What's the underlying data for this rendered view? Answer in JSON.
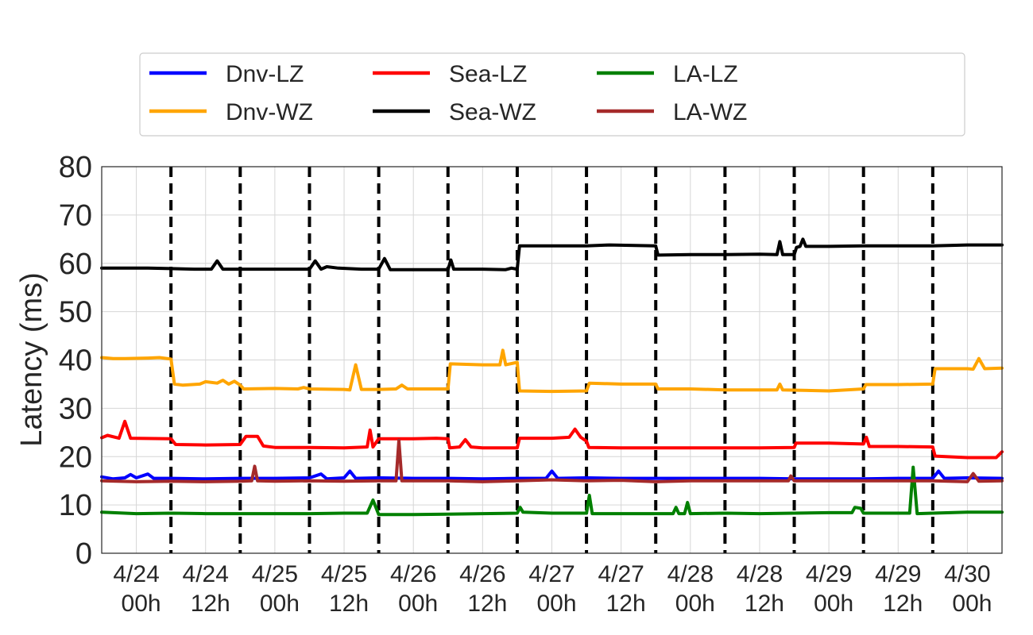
{
  "chart_data": {
    "type": "line",
    "title": "",
    "xlabel": "",
    "ylabel": "Latency (ms)",
    "ylim": [
      0,
      80
    ],
    "yticks": [
      0,
      10,
      20,
      30,
      40,
      50,
      60,
      70,
      80
    ],
    "x_unit": "hours since 4/23 18h",
    "xlim": [
      0,
      156
    ],
    "xticks": [
      {
        "x": 6,
        "line1": "4/24",
        "line2": "00h"
      },
      {
        "x": 18,
        "line1": "4/24",
        "line2": "12h"
      },
      {
        "x": 30,
        "line1": "4/25",
        "line2": "00h"
      },
      {
        "x": 42,
        "line1": "4/25",
        "line2": "12h"
      },
      {
        "x": 54,
        "line1": "4/26",
        "line2": "00h"
      },
      {
        "x": 66,
        "line1": "4/26",
        "line2": "12h"
      },
      {
        "x": 78,
        "line1": "4/27",
        "line2": "00h"
      },
      {
        "x": 90,
        "line1": "4/27",
        "line2": "12h"
      },
      {
        "x": 102,
        "line1": "4/28",
        "line2": "00h"
      },
      {
        "x": 114,
        "line1": "4/28",
        "line2": "12h"
      },
      {
        "x": 126,
        "line1": "4/29",
        "line2": "00h"
      },
      {
        "x": 138,
        "line1": "4/29",
        "line2": "12h"
      },
      {
        "x": 150,
        "line1": "4/30",
        "line2": "00h"
      }
    ],
    "vlines_dashed": [
      12,
      24,
      36,
      48,
      60,
      72,
      84,
      96,
      108,
      120,
      132,
      144
    ],
    "grid": true,
    "legend": {
      "placement": "top",
      "columns": 4
    },
    "series": [
      {
        "name": "Dnv-LZ",
        "color": "#0000ff",
        "points": [
          [
            0,
            15.8
          ],
          [
            2,
            15.4
          ],
          [
            4,
            15.6
          ],
          [
            5,
            16.3
          ],
          [
            6,
            15.6
          ],
          [
            8,
            16.4
          ],
          [
            9,
            15.5
          ],
          [
            12,
            15.5
          ],
          [
            18,
            15.4
          ],
          [
            24,
            15.5
          ],
          [
            30,
            15.5
          ],
          [
            36,
            15.6
          ],
          [
            38,
            16.4
          ],
          [
            39,
            15.4
          ],
          [
            42,
            15.6
          ],
          [
            43,
            17.0
          ],
          [
            44,
            15.5
          ],
          [
            48,
            15.6
          ],
          [
            54,
            15.5
          ],
          [
            60,
            15.5
          ],
          [
            66,
            15.4
          ],
          [
            72,
            15.5
          ],
          [
            77,
            15.5
          ],
          [
            78,
            17.0
          ],
          [
            79,
            15.5
          ],
          [
            84,
            15.6
          ],
          [
            90,
            15.5
          ],
          [
            96,
            15.5
          ],
          [
            102,
            15.5
          ],
          [
            108,
            15.5
          ],
          [
            114,
            15.5
          ],
          [
            120,
            15.4
          ],
          [
            126,
            15.4
          ],
          [
            132,
            15.4
          ],
          [
            138,
            15.5
          ],
          [
            144,
            15.5
          ],
          [
            145,
            17.0
          ],
          [
            146,
            15.5
          ],
          [
            150,
            15.6
          ],
          [
            156,
            15.5
          ]
        ]
      },
      {
        "name": "Dnv-WZ",
        "color": "#ffa500",
        "points": [
          [
            0,
            40.5
          ],
          [
            2,
            40.3
          ],
          [
            4,
            40.3
          ],
          [
            8,
            40.4
          ],
          [
            10,
            40.5
          ],
          [
            12,
            40.2
          ],
          [
            12.6,
            35.0
          ],
          [
            14,
            34.8
          ],
          [
            17,
            35.0
          ],
          [
            18,
            35.5
          ],
          [
            20,
            35.2
          ],
          [
            21,
            35.8
          ],
          [
            22,
            35.0
          ],
          [
            23,
            35.6
          ],
          [
            24,
            34.8
          ],
          [
            24.6,
            34.0
          ],
          [
            30,
            34.1
          ],
          [
            34,
            34.0
          ],
          [
            35,
            34.3
          ],
          [
            36,
            34.0
          ],
          [
            42,
            33.9
          ],
          [
            43,
            33.8
          ],
          [
            44,
            39.0
          ],
          [
            45,
            33.9
          ],
          [
            48,
            33.9
          ],
          [
            51,
            34.0
          ],
          [
            52,
            34.8
          ],
          [
            53,
            34.0
          ],
          [
            60,
            34.0
          ],
          [
            60.4,
            39.2
          ],
          [
            66,
            39.0
          ],
          [
            69,
            39.0
          ],
          [
            69.5,
            42.0
          ],
          [
            70,
            39.0
          ],
          [
            72,
            39.5
          ],
          [
            72.4,
            33.6
          ],
          [
            78,
            33.5
          ],
          [
            84,
            33.6
          ],
          [
            84.5,
            35.2
          ],
          [
            90,
            35.0
          ],
          [
            96,
            35.0
          ],
          [
            96.4,
            34.0
          ],
          [
            102,
            34.0
          ],
          [
            108,
            33.8
          ],
          [
            114,
            33.8
          ],
          [
            117,
            33.8
          ],
          [
            117.5,
            35.0
          ],
          [
            118,
            33.8
          ],
          [
            126,
            33.6
          ],
          [
            132,
            34.0
          ],
          [
            132.4,
            34.9
          ],
          [
            138,
            34.9
          ],
          [
            144,
            35.0
          ],
          [
            144.4,
            38.2
          ],
          [
            150,
            38.2
          ],
          [
            151,
            38.1
          ],
          [
            152,
            40.3
          ],
          [
            153,
            38.2
          ],
          [
            156,
            38.3
          ]
        ]
      },
      {
        "name": "Sea-LZ",
        "color": "#ff0000",
        "points": [
          [
            0,
            23.9
          ],
          [
            1,
            24.4
          ],
          [
            3,
            23.8
          ],
          [
            4,
            27.3
          ],
          [
            5,
            23.8
          ],
          [
            12,
            23.7
          ],
          [
            12.8,
            22.5
          ],
          [
            18,
            22.4
          ],
          [
            24,
            22.5
          ],
          [
            25,
            24.2
          ],
          [
            27,
            24.2
          ],
          [
            28,
            22.2
          ],
          [
            30,
            21.9
          ],
          [
            36,
            21.9
          ],
          [
            42,
            21.8
          ],
          [
            46,
            22.0
          ],
          [
            46.5,
            25.5
          ],
          [
            47,
            22.0
          ],
          [
            48,
            23.7
          ],
          [
            54,
            23.7
          ],
          [
            58,
            23.8
          ],
          [
            60,
            23.7
          ],
          [
            60.3,
            21.8
          ],
          [
            62,
            22.0
          ],
          [
            63,
            23.5
          ],
          [
            64,
            22.0
          ],
          [
            66,
            21.8
          ],
          [
            72,
            21.8
          ],
          [
            72.4,
            23.8
          ],
          [
            78,
            23.8
          ],
          [
            81,
            24.0
          ],
          [
            82,
            25.7
          ],
          [
            83,
            24.0
          ],
          [
            84,
            23.2
          ],
          [
            84.4,
            21.9
          ],
          [
            90,
            21.8
          ],
          [
            96,
            21.8
          ],
          [
            102,
            21.8
          ],
          [
            108,
            21.8
          ],
          [
            114,
            21.8
          ],
          [
            120,
            21.9
          ],
          [
            120.3,
            22.8
          ],
          [
            126,
            22.8
          ],
          [
            132,
            22.6
          ],
          [
            132.5,
            24.0
          ],
          [
            133,
            22.1
          ],
          [
            138,
            22.1
          ],
          [
            144,
            22.0
          ],
          [
            144.4,
            20.1
          ],
          [
            150,
            19.8
          ],
          [
            155,
            19.8
          ],
          [
            156,
            21.0
          ]
        ]
      },
      {
        "name": "Sea-WZ",
        "color": "#000000",
        "points": [
          [
            0,
            59.0
          ],
          [
            4,
            59.0
          ],
          [
            8,
            59.0
          ],
          [
            12,
            58.9
          ],
          [
            16,
            58.8
          ],
          [
            19,
            58.8
          ],
          [
            20,
            60.5
          ],
          [
            21,
            58.8
          ],
          [
            24,
            58.8
          ],
          [
            30,
            58.8
          ],
          [
            36,
            58.8
          ],
          [
            37,
            60.5
          ],
          [
            38,
            58.8
          ],
          [
            39,
            59.3
          ],
          [
            41,
            59.0
          ],
          [
            45,
            58.8
          ],
          [
            48,
            58.8
          ],
          [
            49,
            61.0
          ],
          [
            50,
            58.7
          ],
          [
            54,
            58.7
          ],
          [
            60,
            58.7
          ],
          [
            60.5,
            60.7
          ],
          [
            61,
            58.8
          ],
          [
            66,
            58.8
          ],
          [
            70,
            58.7
          ],
          [
            71,
            59.0
          ],
          [
            72,
            58.8
          ],
          [
            72.4,
            63.6
          ],
          [
            78,
            63.6
          ],
          [
            84,
            63.6
          ],
          [
            88,
            63.8
          ],
          [
            96,
            63.6
          ],
          [
            96.4,
            61.7
          ],
          [
            102,
            61.8
          ],
          [
            108,
            61.8
          ],
          [
            114,
            61.9
          ],
          [
            117,
            61.8
          ],
          [
            117.5,
            64.5
          ],
          [
            118,
            61.8
          ],
          [
            120,
            61.8
          ],
          [
            120.4,
            63.3
          ],
          [
            121,
            63.5
          ],
          [
            121.5,
            65.0
          ],
          [
            122,
            63.5
          ],
          [
            126,
            63.5
          ],
          [
            132,
            63.6
          ],
          [
            138,
            63.6
          ],
          [
            144,
            63.6
          ],
          [
            150,
            63.8
          ],
          [
            156,
            63.8
          ]
        ]
      },
      {
        "name": "LA-LZ",
        "color": "#008000",
        "points": [
          [
            0,
            8.5
          ],
          [
            6,
            8.2
          ],
          [
            12,
            8.3
          ],
          [
            18,
            8.2
          ],
          [
            24,
            8.2
          ],
          [
            30,
            8.2
          ],
          [
            36,
            8.2
          ],
          [
            42,
            8.3
          ],
          [
            46,
            8.3
          ],
          [
            47,
            11.0
          ],
          [
            48,
            8.0
          ],
          [
            54,
            8.0
          ],
          [
            60,
            8.1
          ],
          [
            66,
            8.2
          ],
          [
            72,
            8.3
          ],
          [
            72.5,
            9.5
          ],
          [
            73,
            8.5
          ],
          [
            78,
            8.3
          ],
          [
            84,
            8.3
          ],
          [
            84.5,
            12.0
          ],
          [
            85,
            8.2
          ],
          [
            90,
            8.2
          ],
          [
            96,
            8.2
          ],
          [
            99,
            8.2
          ],
          [
            99.5,
            9.5
          ],
          [
            100,
            8.2
          ],
          [
            101,
            8.2
          ],
          [
            101.5,
            10.5
          ],
          [
            102,
            8.2
          ],
          [
            108,
            8.3
          ],
          [
            114,
            8.2
          ],
          [
            120,
            8.3
          ],
          [
            126,
            8.4
          ],
          [
            130,
            8.4
          ],
          [
            130.5,
            9.5
          ],
          [
            131.5,
            9.3
          ],
          [
            132,
            8.3
          ],
          [
            138,
            8.3
          ],
          [
            140,
            8.3
          ],
          [
            140.6,
            17.8
          ],
          [
            141.3,
            8.2
          ],
          [
            144,
            8.3
          ],
          [
            150,
            8.5
          ],
          [
            156,
            8.5
          ]
        ]
      },
      {
        "name": "LA-WZ",
        "color": "#a52a2a",
        "points": [
          [
            0,
            15.0
          ],
          [
            6,
            14.8
          ],
          [
            12,
            14.9
          ],
          [
            18,
            14.8
          ],
          [
            24,
            14.9
          ],
          [
            26,
            15.0
          ],
          [
            26.5,
            18.0
          ],
          [
            27,
            15.0
          ],
          [
            30,
            14.9
          ],
          [
            36,
            15.0
          ],
          [
            42,
            14.9
          ],
          [
            48,
            15.0
          ],
          [
            51,
            15.0
          ],
          [
            51.5,
            23.4
          ],
          [
            52,
            15.0
          ],
          [
            54,
            15.0
          ],
          [
            60,
            15.0
          ],
          [
            66,
            14.8
          ],
          [
            72,
            15.0
          ],
          [
            78,
            15.2
          ],
          [
            84,
            15.0
          ],
          [
            90,
            15.1
          ],
          [
            96,
            14.8
          ],
          [
            102,
            15.0
          ],
          [
            108,
            15.0
          ],
          [
            114,
            15.0
          ],
          [
            119,
            15.0
          ],
          [
            119.4,
            16.0
          ],
          [
            120,
            15.0
          ],
          [
            126,
            15.0
          ],
          [
            132,
            15.0
          ],
          [
            138,
            15.0
          ],
          [
            144,
            15.0
          ],
          [
            150,
            14.8
          ],
          [
            151,
            16.5
          ],
          [
            152,
            14.9
          ],
          [
            156,
            15.0
          ]
        ]
      }
    ]
  }
}
